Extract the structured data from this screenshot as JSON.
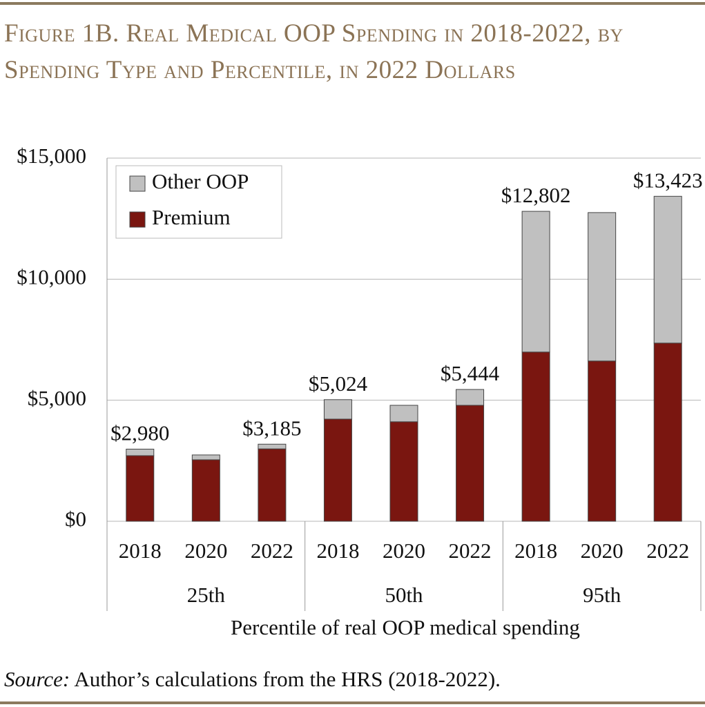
{
  "chart_data": {
    "type": "stacked-bar",
    "title": "Figure 1B. Real Medical OOP Spending in 2018-2022, by Spending Type and Percentile, in 2022 Dollars",
    "x_label": "Percentile of real OOP medical spending",
    "groups": [
      {
        "name": "25th",
        "categories": [
          "2018",
          "2020",
          "2022"
        ]
      },
      {
        "name": "50th",
        "categories": [
          "2018",
          "2020",
          "2022"
        ]
      },
      {
        "name": "95th",
        "categories": [
          "2018",
          "2020",
          "2022"
        ]
      }
    ],
    "series": [
      {
        "name": "Premium",
        "color": "#7a1610",
        "values": [
          2710,
          2540,
          2990,
          4220,
          4110,
          4790,
          6990,
          6620,
          7360
        ]
      },
      {
        "name": "Other OOP",
        "color": "#c0c0c0",
        "values": [
          270,
          200,
          195,
          804,
          680,
          654,
          5812,
          6130,
          6063
        ]
      }
    ],
    "totals": [
      2980,
      null,
      3185,
      5024,
      null,
      5444,
      12802,
      null,
      13423
    ],
    "total_labels": [
      "$2,980",
      null,
      "$3,185",
      "$5,024",
      null,
      "$5,444",
      "$12,802",
      null,
      "$13,423"
    ],
    "ylim": [
      0,
      15000
    ],
    "yticks": [
      {
        "value": 0,
        "label": "$0"
      },
      {
        "value": 5000,
        "label": "$5,000"
      },
      {
        "value": 10000,
        "label": "$10,000"
      },
      {
        "value": 15000,
        "label": "$15,000"
      }
    ],
    "grid": true,
    "legend": "upper left",
    "source_label": "Source:",
    "source_text": "Author’s calculations from the HRS (2018-2022)."
  }
}
